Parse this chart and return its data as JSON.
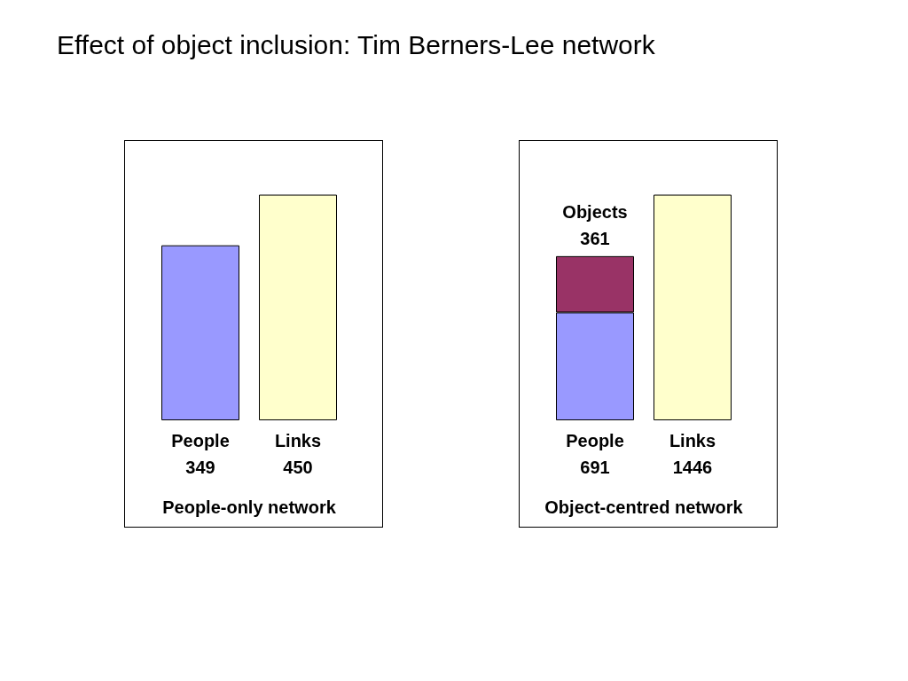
{
  "chart_data": [
    {
      "type": "bar",
      "title": "Effect of object inclusion: Tim Berners-Lee network",
      "categories": [
        "People",
        "Links"
      ],
      "values": [
        349,
        450
      ],
      "colors": [
        "#9999ff",
        "#ffffcc"
      ],
      "data_labels": true,
      "xlabel": "People-only network",
      "legend": false,
      "grid": false
    },
    {
      "type": "bar",
      "categories": [
        "People",
        "Links"
      ],
      "stacked": true,
      "series": [
        {
          "values": [
            691,
            1446
          ],
          "colors": [
            "#9999ff",
            "#ffffcc"
          ]
        },
        {
          "name": "Objects",
          "color": "#993366",
          "values": [
            361,
            null
          ]
        }
      ],
      "data_labels": true,
      "xlabel": "Object-centred network",
      "legend": false,
      "grid": false
    }
  ]
}
